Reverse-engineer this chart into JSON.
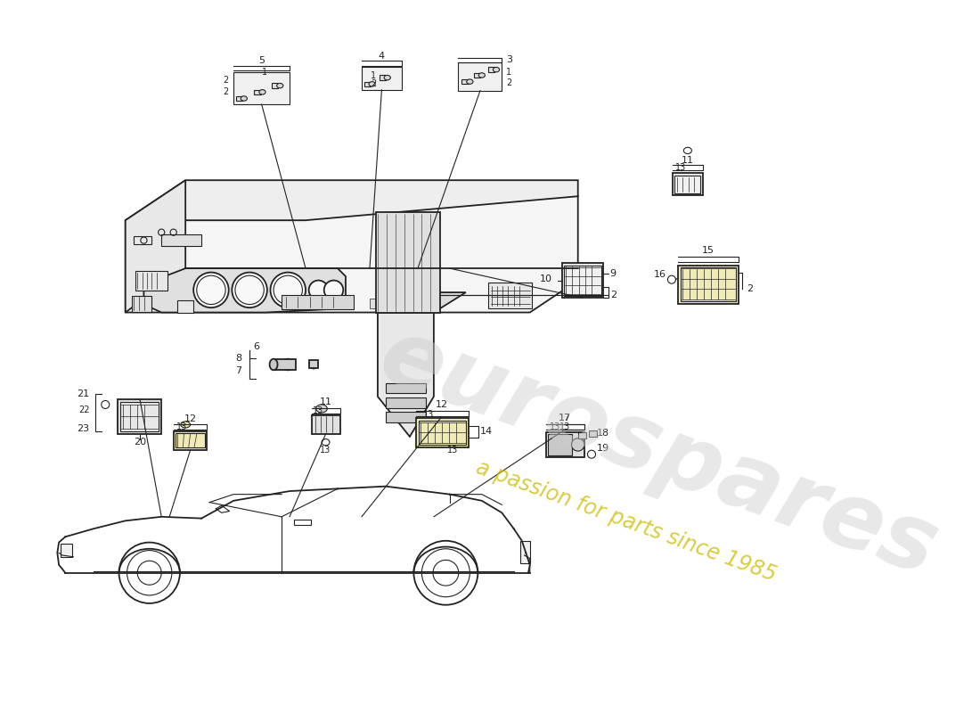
{
  "bg_color": "#ffffff",
  "line_color": "#222222",
  "watermark1": "eurospares",
  "watermark2": "a passion for parts since 1985",
  "wm1_color": "#cccccc",
  "wm2_color": "#ccbb00"
}
